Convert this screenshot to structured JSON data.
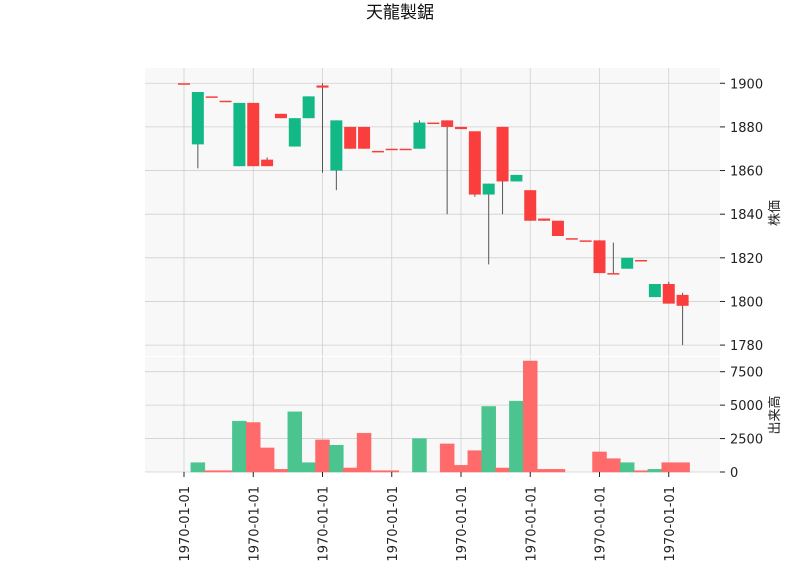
{
  "chart_data": {
    "type": "candlestick",
    "title": "天龍製鋸",
    "colors": {
      "up": "#12b886",
      "down": "#fa3e3e",
      "up_volume": "#4cc48f",
      "down_volume": "#ff6b6b",
      "grid": "#d0d0d0",
      "panel_background": "#f8f8f8"
    },
    "price_panel": {
      "ylabel": "株価",
      "ylim": [
        1775,
        1907
      ],
      "yticks": [
        1780,
        1800,
        1820,
        1840,
        1860,
        1880,
        1900
      ]
    },
    "volume_panel": {
      "ylabel": "出来高",
      "ylim": [
        0,
        8300
      ],
      "yticks": [
        0,
        2500,
        5000,
        7500
      ],
      "ytick_labels": [
        "0",
        "2500",
        "5000",
        "7500"
      ]
    },
    "x_tick_labels": [
      "1970-01-01",
      "1970-01-01",
      "1970-01-01",
      "1970-01-01",
      "1970-01-01",
      "1970-01-01",
      "1970-01-01",
      "1970-01-01"
    ],
    "x_tick_positions": [
      0,
      5,
      10,
      15,
      20,
      25,
      30,
      35
    ],
    "candles": [
      {
        "open": 1900,
        "high": 1900,
        "low": 1900,
        "close": 1900,
        "volume": 0
      },
      {
        "open": 1872,
        "high": 1896,
        "low": 1861,
        "close": 1896,
        "volume": 700
      },
      {
        "open": 1894,
        "high": 1894,
        "low": 1894,
        "close": 1894,
        "volume": 100
      },
      {
        "open": 1892,
        "high": 1892,
        "low": 1892,
        "close": 1892,
        "volume": 100
      },
      {
        "open": 1862,
        "high": 1891,
        "low": 1862,
        "close": 1891,
        "volume": 3800
      },
      {
        "open": 1891,
        "high": 1891,
        "low": 1862,
        "close": 1862,
        "volume": 3700
      },
      {
        "open": 1865,
        "high": 1866,
        "low": 1862,
        "close": 1862,
        "volume": 1800
      },
      {
        "open": 1886,
        "high": 1886,
        "low": 1884,
        "close": 1884,
        "volume": 200
      },
      {
        "open": 1871,
        "high": 1884,
        "low": 1871,
        "close": 1884,
        "volume": 4500
      },
      {
        "open": 1884,
        "high": 1894,
        "low": 1884,
        "close": 1894,
        "volume": 700
      },
      {
        "open": 1899,
        "high": 1900,
        "low": 1859,
        "close": 1898,
        "volume": 2400
      },
      {
        "open": 1860,
        "high": 1883,
        "low": 1851,
        "close": 1883,
        "volume": 2000
      },
      {
        "open": 1880,
        "high": 1880,
        "low": 1870,
        "close": 1870,
        "volume": 300
      },
      {
        "open": 1880,
        "high": 1880,
        "low": 1870,
        "close": 1870,
        "volume": 2900
      },
      {
        "open": 1869,
        "high": 1869,
        "low": 1869,
        "close": 1869,
        "volume": 100
      },
      {
        "open": 1870,
        "high": 1870,
        "low": 1870,
        "close": 1870,
        "volume": 100
      },
      {
        "open": 1870,
        "high": 1870,
        "low": 1870,
        "close": 1870,
        "volume": 0
      },
      {
        "open": 1870,
        "high": 1883,
        "low": 1870,
        "close": 1882,
        "volume": 2500
      },
      {
        "open": 1882,
        "high": 1882,
        "low": 1882,
        "close": 1882,
        "volume": 0
      },
      {
        "open": 1883,
        "high": 1883,
        "low": 1840,
        "close": 1880,
        "volume": 2100
      },
      {
        "open": 1880,
        "high": 1880,
        "low": 1879,
        "close": 1879,
        "volume": 500
      },
      {
        "open": 1878,
        "high": 1878,
        "low": 1848,
        "close": 1849,
        "volume": 1600
      },
      {
        "open": 1849,
        "high": 1854,
        "low": 1817,
        "close": 1854,
        "volume": 4900
      },
      {
        "open": 1880,
        "high": 1880,
        "low": 1840,
        "close": 1855,
        "volume": 300
      },
      {
        "open": 1855,
        "high": 1858,
        "low": 1855,
        "close": 1858,
        "volume": 5300
      },
      {
        "open": 1851,
        "high": 1851,
        "low": 1837,
        "close": 1837,
        "volume": 8300
      },
      {
        "open": 1838,
        "high": 1838,
        "low": 1837,
        "close": 1837,
        "volume": 200
      },
      {
        "open": 1837,
        "high": 1837,
        "low": 1830,
        "close": 1830,
        "volume": 200
      },
      {
        "open": 1829,
        "high": 1829,
        "low": 1829,
        "close": 1829,
        "volume": 0
      },
      {
        "open": 1828,
        "high": 1828,
        "low": 1828,
        "close": 1828,
        "volume": 0
      },
      {
        "open": 1828,
        "high": 1828,
        "low": 1813,
        "close": 1813,
        "volume": 1500
      },
      {
        "open": 1813,
        "high": 1827,
        "low": 1813,
        "close": 1813,
        "volume": 1000
      },
      {
        "open": 1815,
        "high": 1820,
        "low": 1815,
        "close": 1820,
        "volume": 700
      },
      {
        "open": 1819,
        "high": 1819,
        "low": 1819,
        "close": 1819,
        "volume": 100
      },
      {
        "open": 1802,
        "high": 1808,
        "low": 1802,
        "close": 1808,
        "volume": 200
      },
      {
        "open": 1808,
        "high": 1809,
        "low": 1799,
        "close": 1799,
        "volume": 700
      },
      {
        "open": 1803,
        "high": 1804,
        "low": 1780,
        "close": 1798,
        "volume": 700
      }
    ]
  }
}
